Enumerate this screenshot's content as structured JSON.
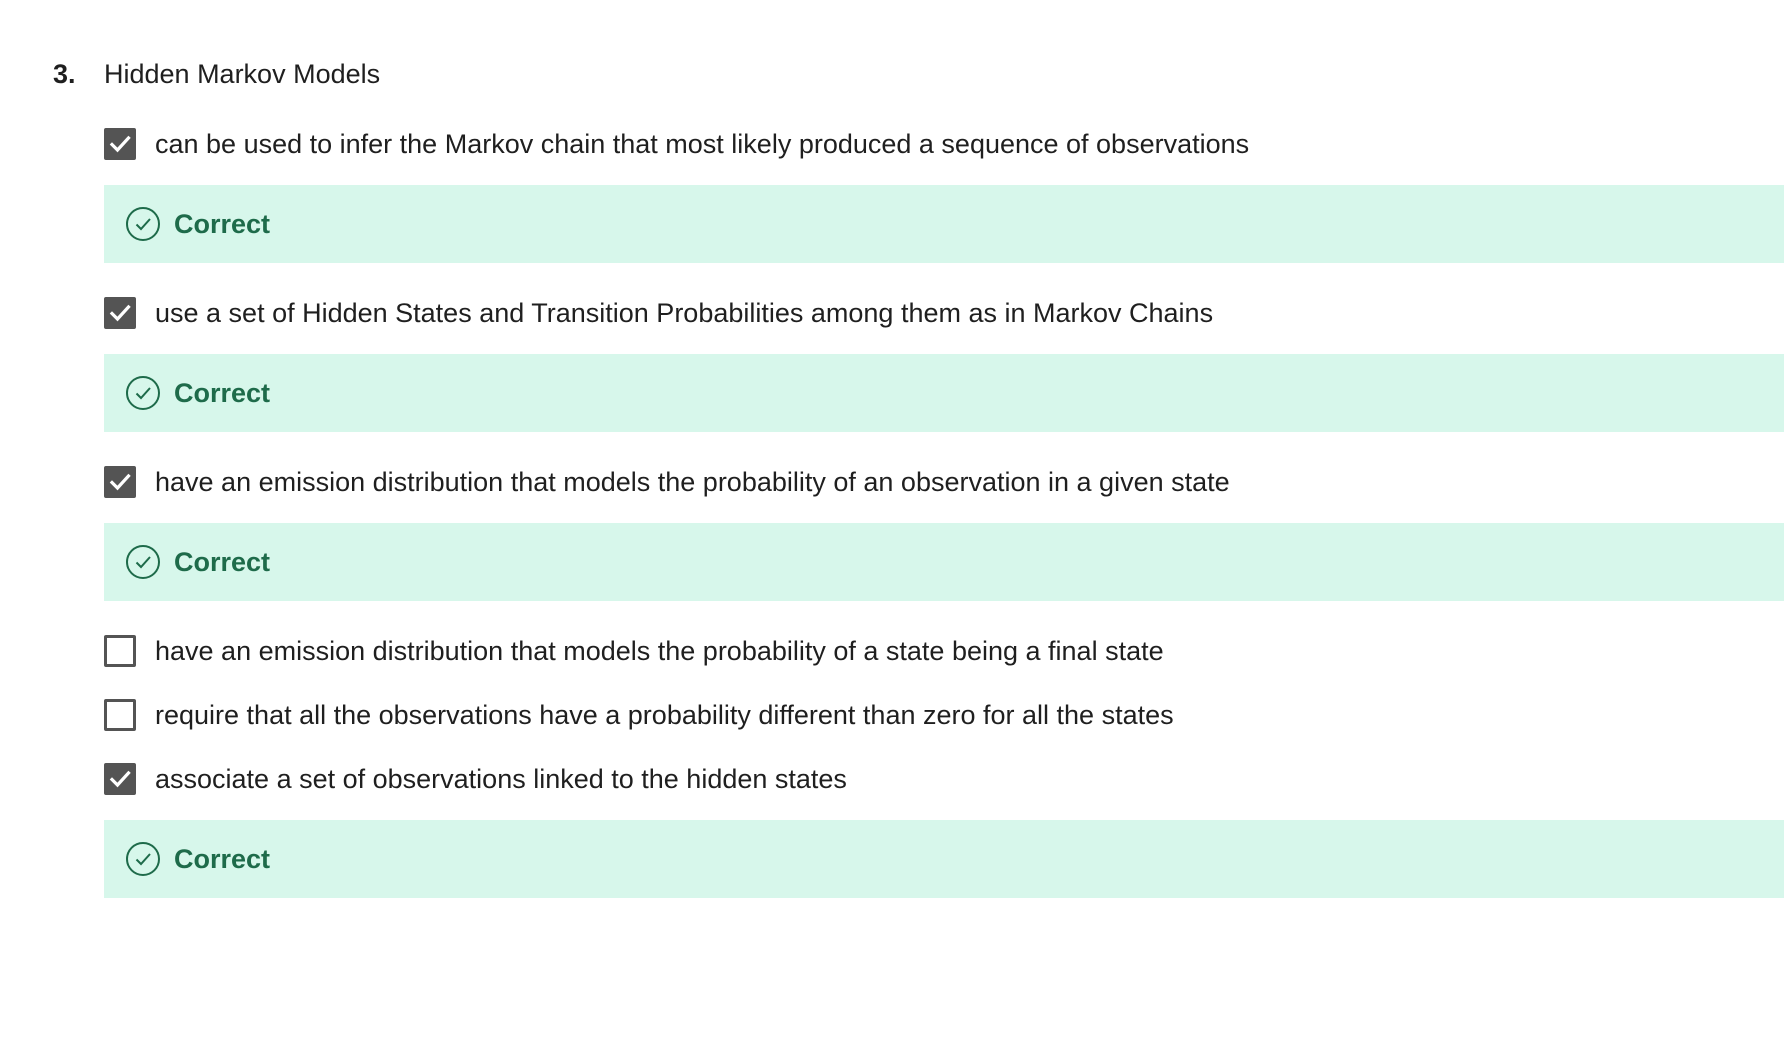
{
  "question": {
    "number": "3.",
    "title": "Hidden Markov Models"
  },
  "options": [
    {
      "label": "can be used to infer the Markov chain that most likely produced a sequence of observations",
      "checked": true,
      "feedback": "Correct"
    },
    {
      "label": "use a set of Hidden States and Transition Probabilities among them as in Markov Chains",
      "checked": true,
      "feedback": "Correct"
    },
    {
      "label": "have an emission distribution that models the probability of an observation in a given state",
      "checked": true,
      "feedback": "Correct"
    },
    {
      "label": "have an emission distribution that models the probability of a state being a final state",
      "checked": false
    },
    {
      "label": "require that all the observations have a probability different than zero for all the states",
      "checked": false
    },
    {
      "label": "associate a set of observations linked to the hidden states",
      "checked": true,
      "feedback": "Correct"
    }
  ],
  "icons": {
    "checked": "checkmark-icon",
    "feedback": "check-circle-icon"
  },
  "colors": {
    "checkbox": "#545454",
    "feedback_background": "#d7f7eb",
    "feedback_text": "#1e6b4a"
  }
}
